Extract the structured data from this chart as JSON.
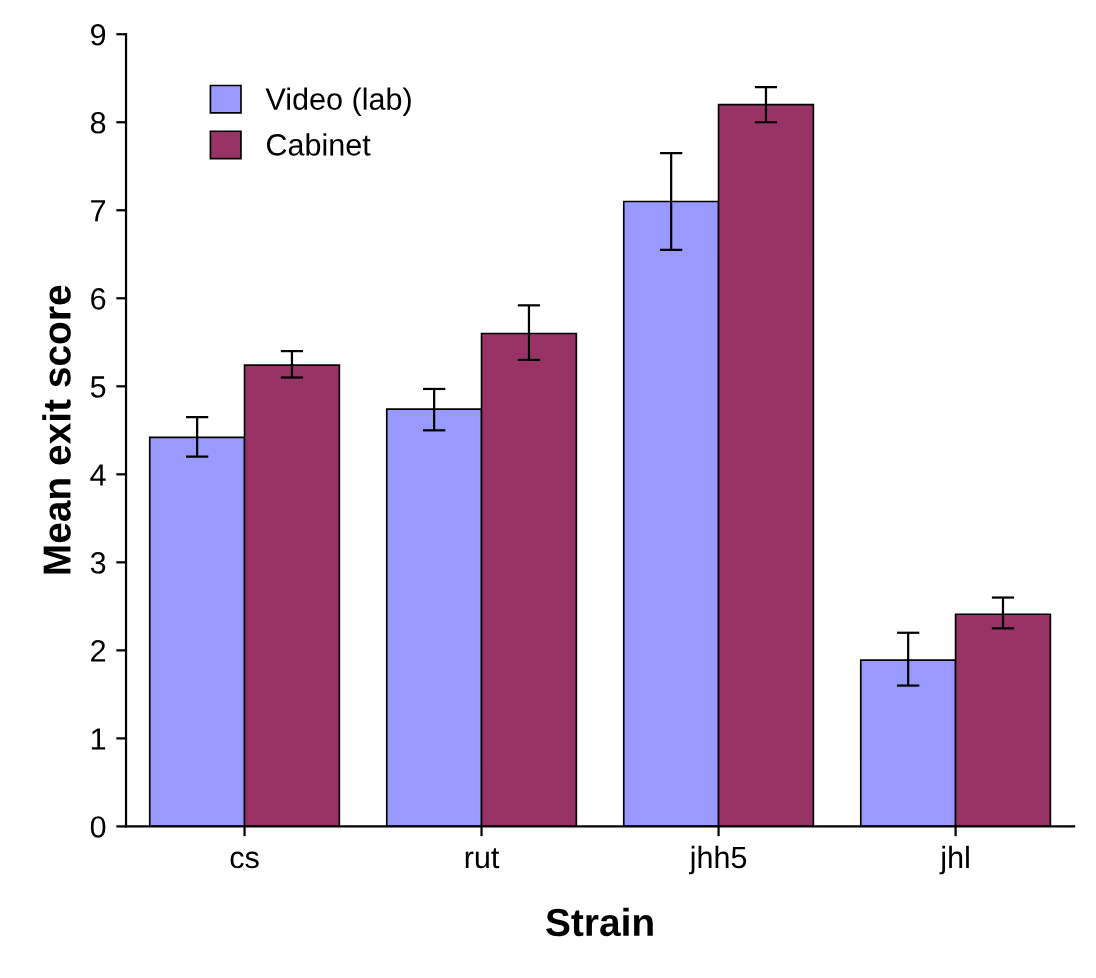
{
  "chart_data": {
    "type": "bar",
    "xlabel": "Strain",
    "ylabel": "Mean exit score",
    "categories": [
      "cs",
      "rut",
      "jhh5",
      "jhl"
    ],
    "series": [
      {
        "name": "Video (lab)",
        "color": "#9999ff",
        "values": [
          4.42,
          4.74,
          7.1,
          1.89
        ],
        "errors": [
          [
            4.2,
            4.65
          ],
          [
            4.5,
            4.97
          ],
          [
            6.55,
            7.65
          ],
          [
            1.6,
            2.2
          ]
        ]
      },
      {
        "name": "Cabinet",
        "color": "#993366",
        "values": [
          5.24,
          5.6,
          8.2,
          2.41
        ],
        "errors": [
          [
            5.1,
            5.4
          ],
          [
            5.3,
            5.92
          ],
          [
            8.0,
            8.4
          ],
          [
            2.25,
            2.6
          ]
        ]
      }
    ],
    "ylim": [
      0,
      9
    ],
    "yticks": [
      0,
      1,
      2,
      3,
      4,
      5,
      6,
      7,
      8,
      9
    ],
    "grid": false,
    "legend": "top left"
  }
}
